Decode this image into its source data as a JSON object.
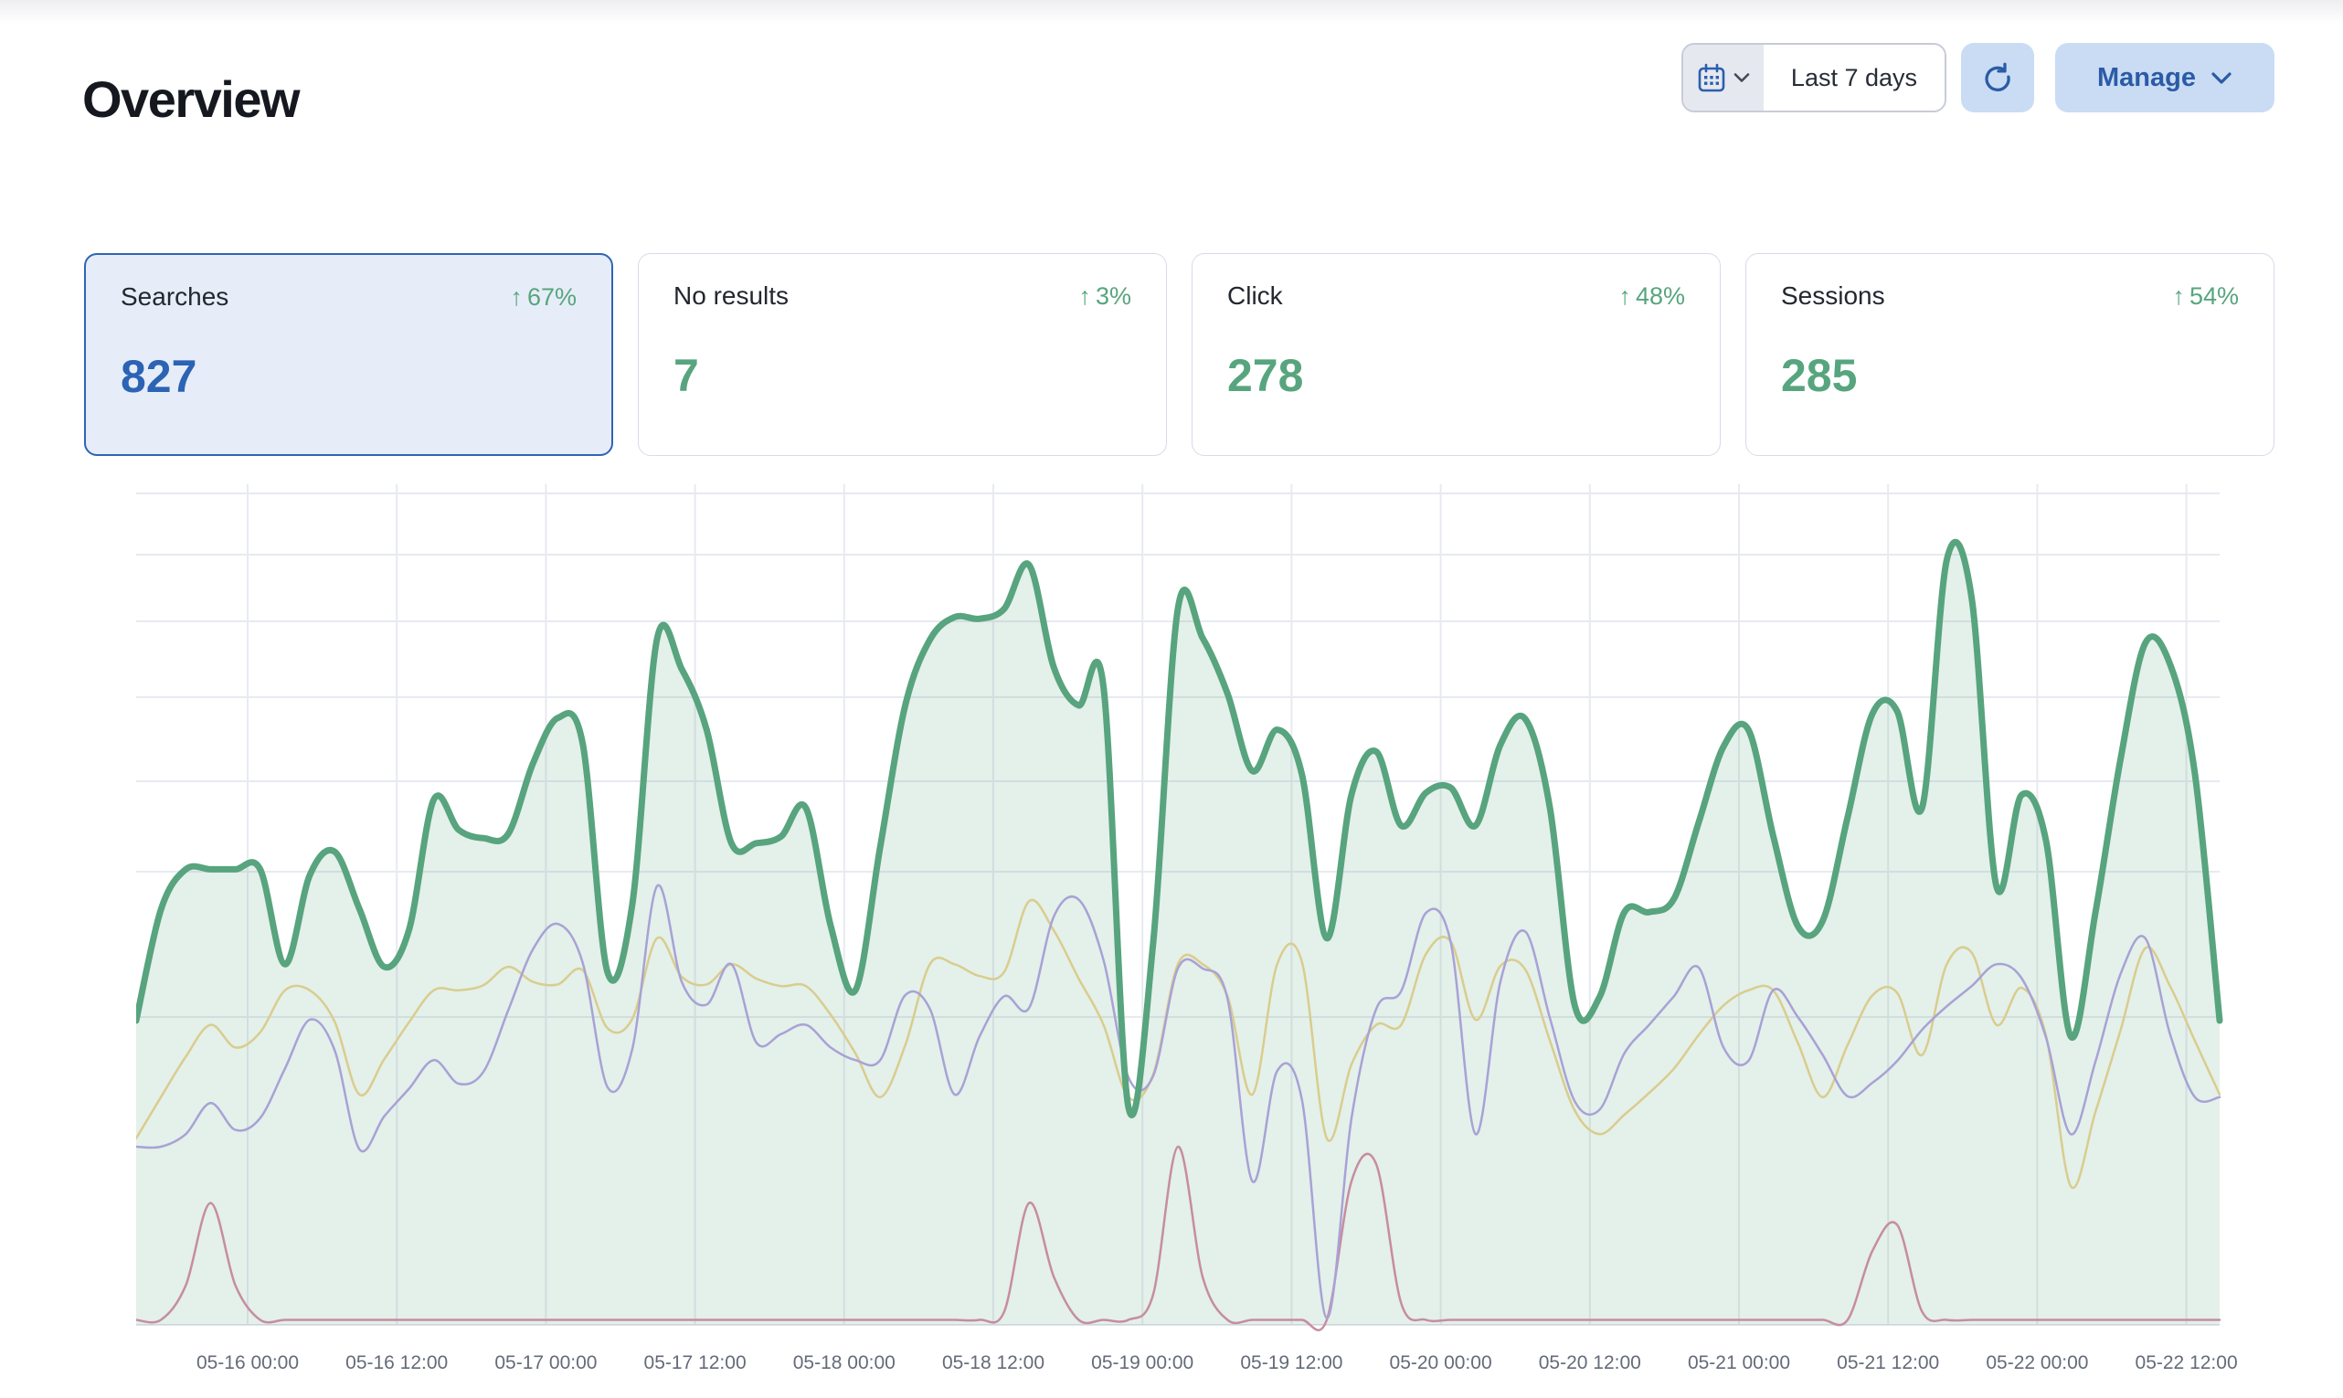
{
  "page": {
    "title": "Overview"
  },
  "controls": {
    "date_picker": {
      "icon": "calendar-icon",
      "value": "Last 7 days"
    },
    "refresh": {
      "icon": "refresh-icon"
    },
    "manage": {
      "label": "Manage",
      "icon": "chevron-down-icon"
    }
  },
  "cards": [
    {
      "label": "Searches",
      "delta": "67%",
      "delta_direction": "up",
      "value": "827",
      "selected": true,
      "value_color": "#2c63b5"
    },
    {
      "label": "No results",
      "delta": "3%",
      "delta_direction": "up",
      "value": "7",
      "selected": false,
      "value_color": "#57a57e"
    },
    {
      "label": "Click",
      "delta": "48%",
      "delta_direction": "up",
      "value": "278",
      "selected": false,
      "value_color": "#57a57e"
    },
    {
      "label": "Sessions",
      "delta": "54%",
      "delta_direction": "up",
      "value": "285",
      "selected": false,
      "value_color": "#57a57e"
    }
  ],
  "chart_data": {
    "type": "area",
    "title": "",
    "xlabel": "",
    "ylabel": "",
    "legend": "none",
    "y_axis_labels": "none",
    "grid": true,
    "grid_color": "#e8eaf1",
    "axis_line_color": "#e0e3eb",
    "tick_label_color": "#646b78",
    "ylim": [
      0,
      100
    ],
    "note": "y values estimated on a 0-100 pixel scale; chart shows no numeric y-axis labels",
    "x_tick_labels": [
      "05-16 00:00",
      "05-16 12:00",
      "05-17 00:00",
      "05-17 12:00",
      "05-18 00:00",
      "05-18 12:00",
      "05-19 00:00",
      "05-19 12:00",
      "05-20 00:00",
      "05-20 12:00",
      "05-21 00:00",
      "05-21 12:00",
      "05-22 00:00",
      "05-22 12:00"
    ],
    "h_gridlines_y": [
      10,
      77,
      150,
      233,
      325,
      424,
      583
    ],
    "series": [
      {
        "name": "searches-area",
        "color": "#57a47e",
        "fill": "rgba(87,164,126,0.16)",
        "width": 7,
        "values": [
          36.2,
          49.4,
          54.2,
          54.2,
          54.2,
          54.2,
          42.9,
          53.5,
          56.3,
          49.5,
          42.6,
          47.0,
          62.5,
          58.9,
          57.9,
          58.4,
          66.8,
          72.2,
          69.2,
          42.0,
          50.0,
          81.6,
          78.0,
          70.8,
          57.3,
          57.3,
          58.1,
          61.5,
          47.5,
          39.8,
          56.9,
          73.6,
          81.5,
          84.2,
          84.0,
          85.2,
          90.4,
          78.2,
          73.7,
          75.9,
          26.0,
          45.4,
          85.2,
          81.7,
          75.1,
          65.9,
          70.8,
          65.5,
          46.0,
          63.1,
          68.2,
          59.4,
          63.3,
          63.9,
          59.4,
          69.0,
          72.1,
          61.5,
          38.0,
          39.0,
          49.1,
          49.1,
          50.7,
          59.8,
          68.8,
          70.8,
          58.2,
          47.4,
          48.1,
          60.4,
          72.7,
          73.0,
          61.5,
          91.0,
          86.5,
          52.2,
          63.0,
          57.6,
          34.3,
          49.2,
          67.2,
          81.1,
          78.6,
          65.6,
          36.2
        ]
      },
      {
        "name": "line-purple",
        "color": "#a8a2d5",
        "width": 2.5,
        "values": [
          21.2,
          21.2,
          22.7,
          26.4,
          23.2,
          24.6,
          30.5,
          36.3,
          32.7,
          20.9,
          24.8,
          28.1,
          31.5,
          28.7,
          30.1,
          37.4,
          44.7,
          47.7,
          43.1,
          28.3,
          32.8,
          52.2,
          40.8,
          38.1,
          42.9,
          33.6,
          34.6,
          35.7,
          33.0,
          31.5,
          31.5,
          39.2,
          37.6,
          27.4,
          34.3,
          39.1,
          37.7,
          48.6,
          50.6,
          43.4,
          29.5,
          29.6,
          42.4,
          42.4,
          38.8,
          17.1,
          30.2,
          26.8,
          0.8,
          24.6,
          37.6,
          39.7,
          49.0,
          45.5,
          22.7,
          40.8,
          46.8,
          36.5,
          26.6,
          25.6,
          32.3,
          35.7,
          39.1,
          42.5,
          33.0,
          31.4,
          39.8,
          36.6,
          32.1,
          27.2,
          28.8,
          31.4,
          35.1,
          37.9,
          40.3,
          42.9,
          41.3,
          34.2,
          22.7,
          31.4,
          41.7,
          46.0,
          34.6,
          27.1,
          27.1
        ]
      },
      {
        "name": "line-yellow",
        "color": "#d9cd8e",
        "width": 2.5,
        "values": [
          22.2,
          27.1,
          31.9,
          35.7,
          33.0,
          34.8,
          39.8,
          39.8,
          36.1,
          27.4,
          31.6,
          36.0,
          39.8,
          39.8,
          40.4,
          42.6,
          40.8,
          40.5,
          42.2,
          35.3,
          36.4,
          46.0,
          41.4,
          40.5,
          42.9,
          41.2,
          40.3,
          40.3,
          36.9,
          32.3,
          27.1,
          33.2,
          42.9,
          42.9,
          41.5,
          42.0,
          50.4,
          46.9,
          41.2,
          35.7,
          27.1,
          29.8,
          42.9,
          42.9,
          39.1,
          27.4,
          42.9,
          43.2,
          22.2,
          31.0,
          35.7,
          35.7,
          44.1,
          45.6,
          36.3,
          42.7,
          42.3,
          33.8,
          25.5,
          22.7,
          25.0,
          27.6,
          30.5,
          34.5,
          38.0,
          39.8,
          39.8,
          33.5,
          27.1,
          33.3,
          39.2,
          39.5,
          32.1,
          42.9,
          44.3,
          35.7,
          40.1,
          34.4,
          16.5,
          25.4,
          35.0,
          44.8,
          40.3,
          33.8,
          27.4
        ]
      },
      {
        "name": "line-red",
        "color": "#c68da0",
        "width": 2.5,
        "values": [
          0.6,
          0.6,
          4.7,
          14.5,
          4.7,
          0.6,
          0.6,
          0.6,
          0.6,
          0.6,
          0.6,
          0.6,
          0.6,
          0.6,
          0.6,
          0.6,
          0.6,
          0.6,
          0.6,
          0.6,
          0.6,
          0.6,
          0.6,
          0.6,
          0.6,
          0.6,
          0.6,
          0.6,
          0.6,
          0.6,
          0.6,
          0.6,
          0.6,
          0.6,
          0.6,
          1.6,
          14.5,
          5.7,
          0.6,
          0.6,
          0.6,
          3.6,
          21.2,
          5.7,
          0.6,
          0.6,
          0.6,
          0.6,
          0.6,
          17.1,
          19.1,
          2.6,
          0.6,
          0.6,
          0.6,
          0.6,
          0.6,
          0.6,
          0.6,
          0.6,
          0.6,
          0.6,
          0.6,
          0.6,
          0.6,
          0.6,
          0.6,
          0.6,
          0.6,
          0.6,
          8.8,
          11.9,
          1.6,
          0.6,
          0.6,
          0.6,
          0.6,
          0.6,
          0.6,
          0.6,
          0.6,
          0.6,
          0.6,
          0.6,
          0.6
        ]
      }
    ]
  }
}
